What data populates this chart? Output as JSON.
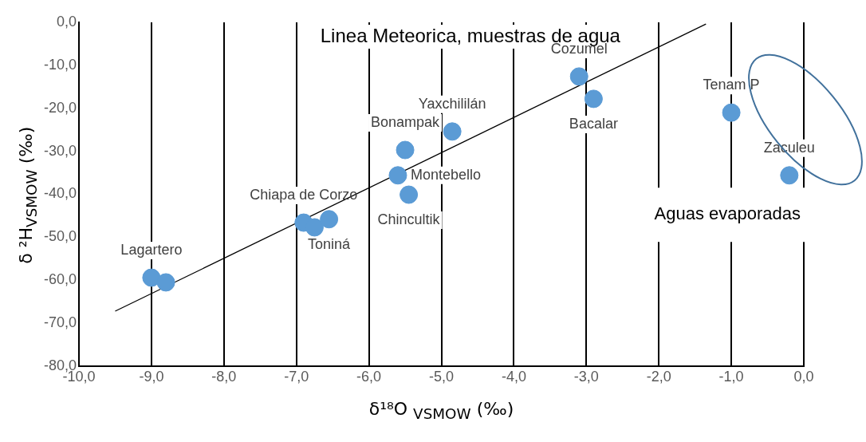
{
  "chart_data": {
    "type": "scatter",
    "title": "Linea Meteorica, muestras de agua",
    "xlabel": "δ¹⁸O $_{VSMOW}$ (‰)",
    "ylabel": "δ ²H$_{VSMOW}$ (‰)",
    "xlim": [
      -10,
      0
    ],
    "ylim": [
      -80,
      0
    ],
    "xticks": [
      {
        "value": -10,
        "label": "-10,0"
      },
      {
        "value": -9,
        "label": "-9,0"
      },
      {
        "value": -8,
        "label": "-8,0"
      },
      {
        "value": -7,
        "label": "-7,0"
      },
      {
        "value": -6,
        "label": "-6,0"
      },
      {
        "value": -5,
        "label": "-5,0"
      },
      {
        "value": -4,
        "label": "-4,0"
      },
      {
        "value": -3,
        "label": "-3,0"
      },
      {
        "value": -2,
        "label": "-2,0"
      },
      {
        "value": -1,
        "label": "-1,0"
      },
      {
        "value": 0,
        "label": "0,0"
      }
    ],
    "yticks": [
      {
        "value": -80,
        "label": "-80,0"
      },
      {
        "value": -70,
        "label": "-70,0"
      },
      {
        "value": -60,
        "label": "-60,0"
      },
      {
        "value": -50,
        "label": "-50,0"
      },
      {
        "value": -40,
        "label": "-40,0"
      },
      {
        "value": -30,
        "label": "-30,0"
      },
      {
        "value": -20,
        "label": "-20,0"
      },
      {
        "value": -10,
        "label": "-10,0"
      },
      {
        "value": 0,
        "label": "0,0"
      }
    ],
    "grid": "x",
    "legend": false,
    "marker": "circle",
    "series": [
      {
        "type": "scatter",
        "color": "#5b9bd5",
        "x": [
          -9.0,
          -8.8,
          -6.9,
          -6.75,
          -6.55,
          -5.6,
          -5.5,
          -5.45,
          -4.85,
          -3.1,
          -2.9,
          -1.0,
          -0.2
        ],
        "values": [
          -59.4,
          -60.5,
          -46.6,
          -47.7,
          -45.8,
          -35.6,
          -29.7,
          -40.1,
          -25.4,
          -12.6,
          -17.8,
          -21.0,
          -35.6
        ],
        "value_labels": [
          "Lagartero",
          null,
          "Chiapa de Corzo",
          null,
          "Toniná",
          "Montebello",
          "Bonampak",
          "Chincultik",
          "Yaxchililán",
          "Cozumel",
          "Bacalar",
          "Tenam P",
          "Zaculeu"
        ]
      },
      {
        "type": "line",
        "color": "#000000",
        "marker": "none",
        "x": [
          -9.5,
          -1.35
        ],
        "values": [
          -67.2,
          -0.4
        ]
      }
    ],
    "annotations": [
      "Aguas evaporadas"
    ]
  }
}
